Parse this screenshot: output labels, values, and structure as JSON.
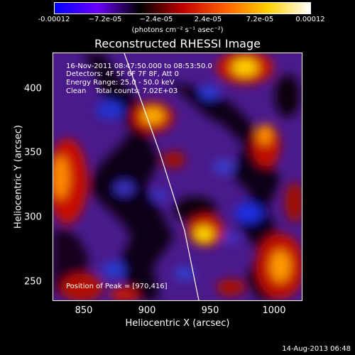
{
  "colorbar": {
    "ticks": [
      "-0.00012",
      "−7.2e-05",
      "−2.4e-05",
      "2.4e-05",
      "7.2e-05",
      "0.00012"
    ],
    "unit": "(photons cm⁻² s⁻¹ asec⁻²)",
    "colors": [
      "#0000ff",
      "#6c00ff",
      "#000000",
      "#c00000",
      "#ff6000",
      "#ffd000",
      "#ffffff"
    ]
  },
  "title": "Reconstructed RHESSI Image",
  "info": {
    "time": "16-Nov-2011 08:47:50.000 to 08:53:50.0",
    "detectors": "Detectors: 4F 5F 6F 7F 8F, Att 0",
    "energy": "Energy Range: 25.0 - 50.0 keV",
    "clean": "Clean    Total counts: 7.02E+03",
    "peak": "Position of Peak = [970,416]"
  },
  "axes": {
    "xlabel": "Heliocentric X (arcsec)",
    "ylabel": "Heliocentric Y (arcsec)",
    "xticks": [
      "850",
      "900",
      "950",
      "1000"
    ],
    "yticks": [
      "400",
      "350",
      "300",
      "250"
    ],
    "xlim": [
      827,
      1021
    ],
    "ylim": [
      233,
      426
    ]
  },
  "timestamp": "14-Aug-2013 06:48"
}
